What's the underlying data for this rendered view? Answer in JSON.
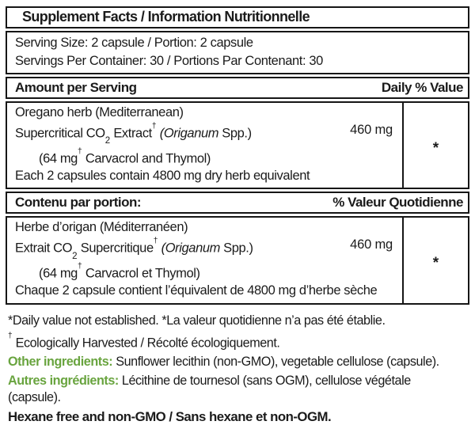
{
  "colors": {
    "accent_green": "#69a43f",
    "border": "#161616",
    "text": "#1b1b1b"
  },
  "table": {
    "title": "Supplement Facts / Information Nutritionnelle",
    "serving": {
      "line1": "Serving Size: 2 capsule / Portion: 2 capsule",
      "line2": "Servings Per Container: 30 / Portions Par Contenant: 30"
    },
    "en": {
      "col_left": "Amount per Serving",
      "col_right": "Daily % Value",
      "row": {
        "line1": "Oregano herb (Mediterranean)",
        "name_pre": "Supercritical CO",
        "name_sub": "2",
        "name_mid": " Extract",
        "name_dagger": "†",
        "name_italic": " (Origanum",
        "name_post": " Spp.)",
        "amount": "460 mg",
        "daily_value": "*",
        "line3_pre": "(64 mg",
        "line3_sup": "†",
        "line3_post": " Carvacrol and Thymol)",
        "line4": "Each 2 capsules contain 4800 mg dry herb equivalent"
      }
    },
    "fr": {
      "col_left": "Contenu par portion:",
      "col_right": "% Valeur Quotidienne",
      "row": {
        "line1": "Herbe d’origan (Méditerranéen)",
        "name_pre": "Extrait CO",
        "name_sub": "2",
        "name_mid": " Supercritique",
        "name_dagger": "†",
        "name_italic": " (Origanum",
        "name_post": " Spp.)",
        "amount": "460 mg",
        "daily_value": "*",
        "line3_pre": "(64 mg",
        "line3_sup": "†",
        "line3_post": " Carvacrol et Thymol)",
        "line4": "Chaque 2 capsule contient l’équivalent de 4800 mg d’herbe sèche"
      }
    }
  },
  "footnotes": {
    "daily_value_note": "*Daily value not established. *La valeur quotidienne n’a pas été établie.",
    "dagger_sup": "†",
    "dagger_text": " Ecologically Harvested / Récolté écologiquement.",
    "other_label": "Other ingredients:",
    "other_text": " Sunflower lecithin (non-GMO), vegetable cellulose (capsule).",
    "autres_label": "Autres ingrédients:",
    "autres_text": " Lécithine de tournesol (sans OGM), cellulose végétale",
    "autres_text2": "(capsule).",
    "hexane_line": "Hexane free and non-GMO / Sans hexane et non-OGM."
  }
}
